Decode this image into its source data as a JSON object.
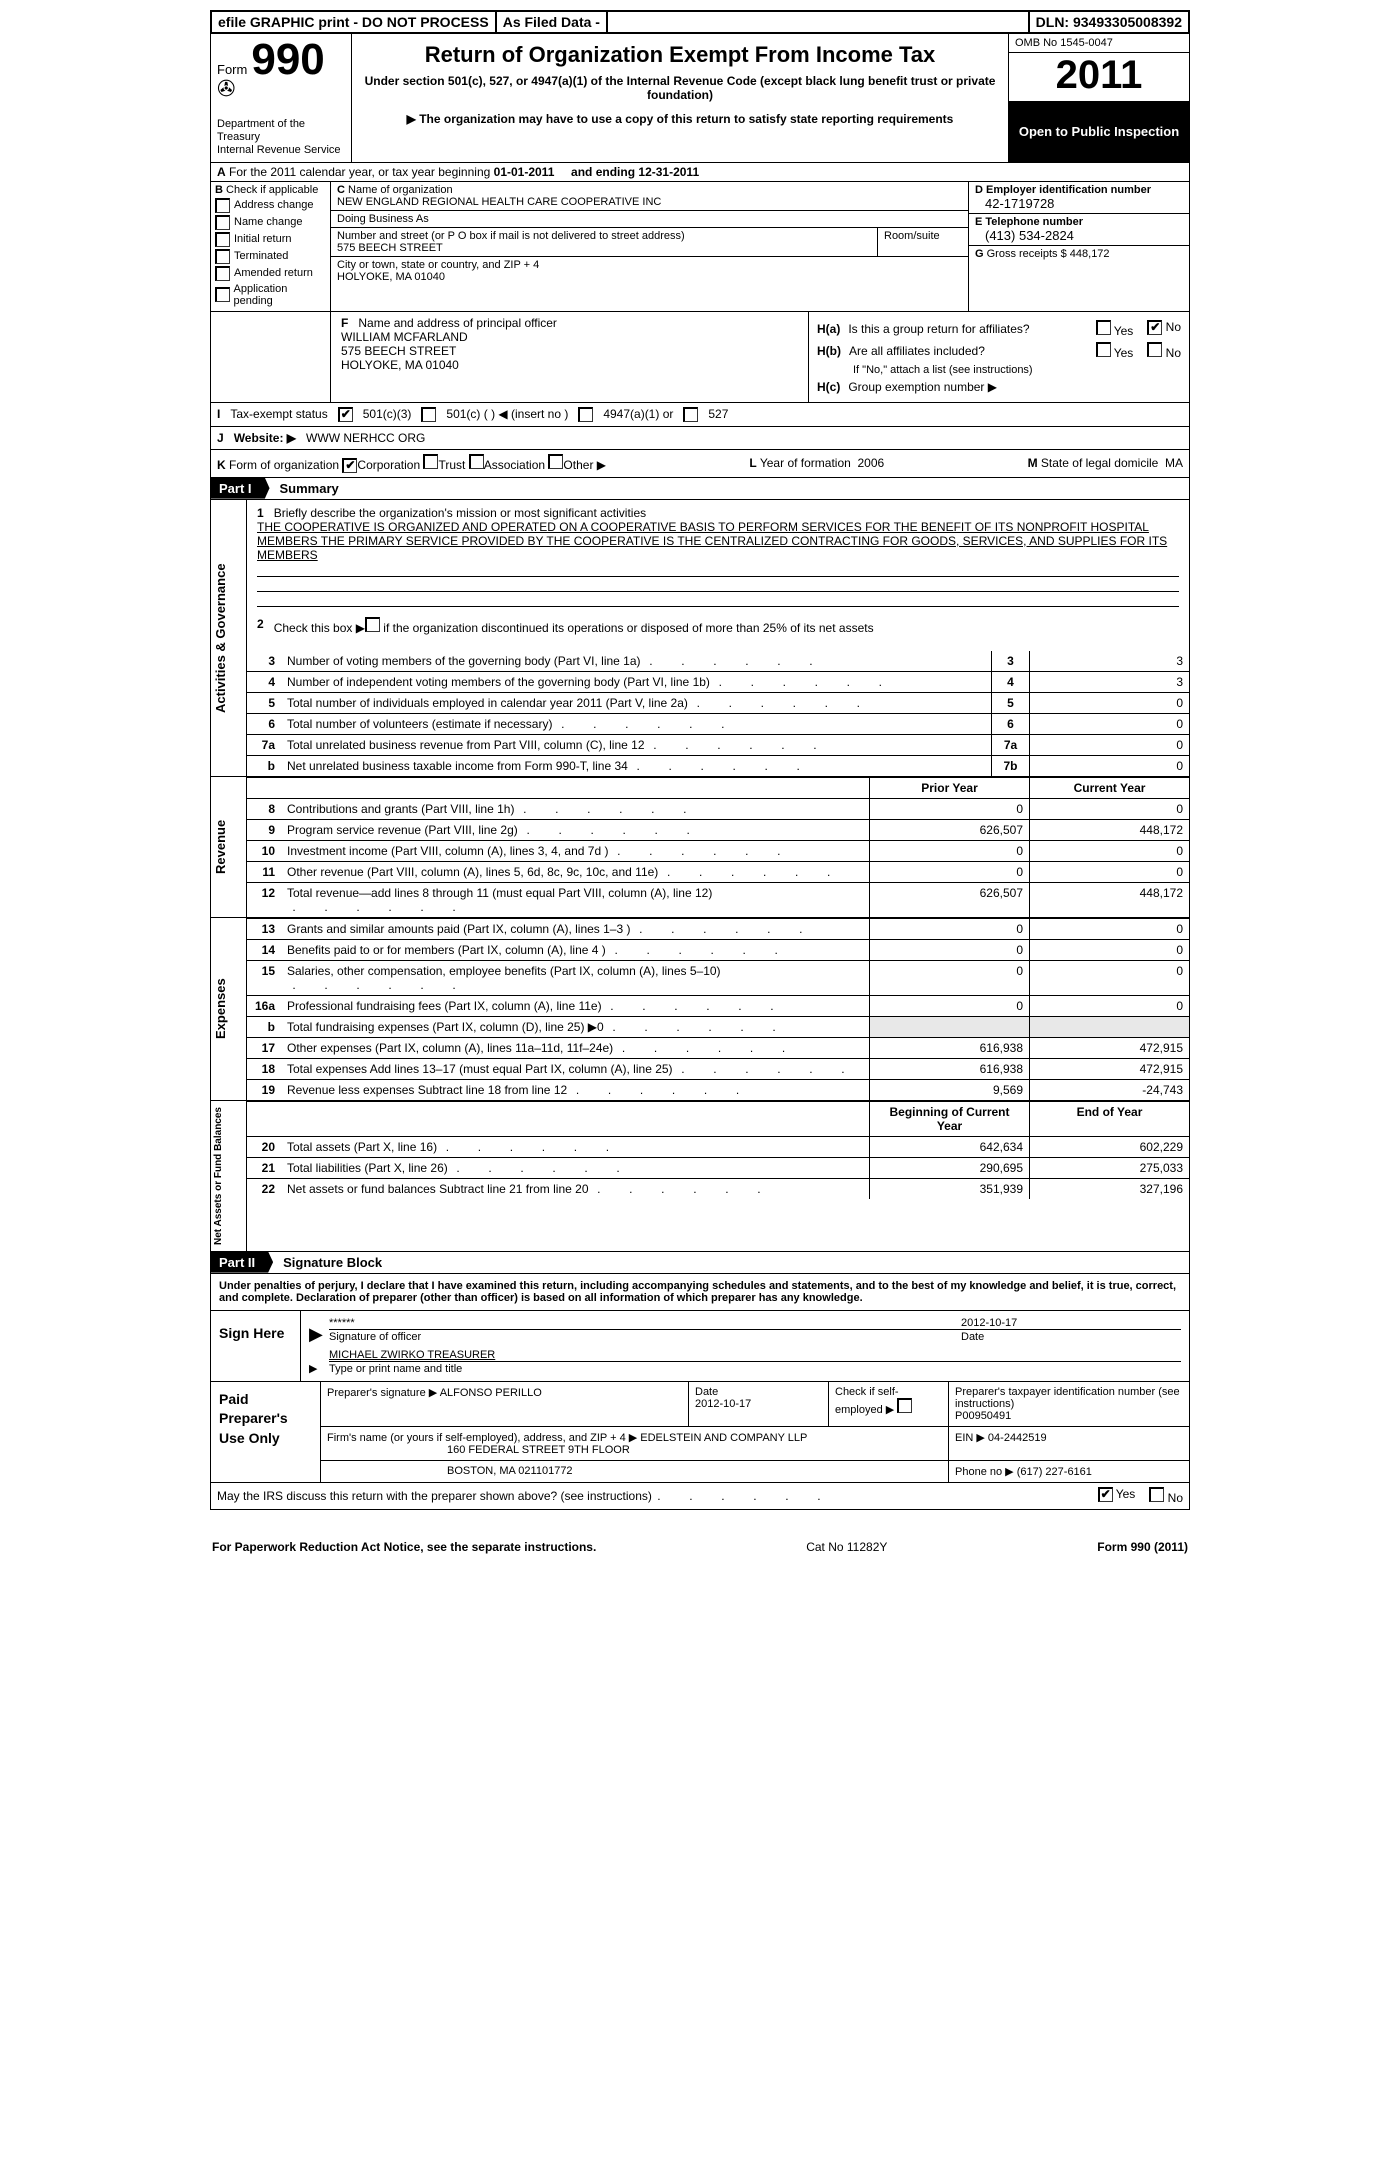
{
  "topbar": {
    "efile": "efile GRAPHIC print - DO NOT PROCESS",
    "asfiled": "As Filed Data -",
    "dln_label": "DLN:",
    "dln": "93493305008392"
  },
  "header": {
    "form_label": "Form",
    "form_num": "990",
    "dept1": "Department of the Treasury",
    "dept2": "Internal Revenue Service",
    "title": "Return of Organization Exempt From Income Tax",
    "subtitle": "Under section 501(c), 527, or 4947(a)(1) of the Internal Revenue Code (except black lung benefit trust or private foundation)",
    "note": "▶ The organization may have to use a copy of this return to satisfy state reporting requirements",
    "omb": "OMB No 1545-0047",
    "year": "2011",
    "open": "Open to Public Inspection"
  },
  "rowA": {
    "label": "A",
    "text1": "For the 2011 calendar year, or tax year beginning",
    "begin": "01-01-2011",
    "text2": "and ending",
    "end": "12-31-2011"
  },
  "colB": {
    "label": "B",
    "text": "Check if applicable",
    "items": [
      "Address change",
      "Name change",
      "Initial return",
      "Terminated",
      "Amended return",
      "Application pending"
    ]
  },
  "colC": {
    "c_label": "C",
    "name_label": "Name of organization",
    "name": "NEW ENGLAND REGIONAL HEALTH CARE COOPERATIVE INC",
    "dba_label": "Doing Business As",
    "street_label": "Number and street (or P O box if mail is not delivered to street address)",
    "room_label": "Room/suite",
    "street": "575 BEECH STREET",
    "city_label": "City or town, state or country, and ZIP + 4",
    "city": "HOLYOKE, MA  01040"
  },
  "colD": {
    "d_label": "D Employer identification number",
    "ein": "42-1719728",
    "e_label": "E Telephone number",
    "phone": "(413) 534-2824",
    "g_label": "G",
    "g_text": "Gross receipts $",
    "g_val": "448,172"
  },
  "rowF": {
    "label": "F",
    "text": "Name and address of principal officer",
    "l1": "WILLIAM MCFARLAND",
    "l2": "575 BEECH STREET",
    "l3": "HOLYOKE, MA  01040"
  },
  "rowH": {
    "ha_label": "H(a)",
    "ha_text": "Is this a group return for affiliates?",
    "hb_label": "H(b)",
    "hb_text": "Are all affiliates included?",
    "hb_note": "If \"No,\" attach a list (see instructions)",
    "hc_label": "H(c)",
    "hc_text": "Group exemption number ▶",
    "yes": "Yes",
    "no": "No"
  },
  "rowI": {
    "label": "I",
    "text": "Tax-exempt status",
    "opts": [
      "501(c)(3)",
      "501(c) (   ) ◀ (insert no )",
      "4947(a)(1) or",
      "527"
    ]
  },
  "rowJ": {
    "label": "J",
    "text": "Website: ▶",
    "val": "WWW NERHCC ORG"
  },
  "rowK": {
    "label": "K",
    "text": "Form of organization",
    "opts": [
      "Corporation",
      "Trust",
      "Association",
      "Other ▶"
    ],
    "l_label": "L",
    "l_text": "Year of formation",
    "l_val": "2006",
    "m_label": "M",
    "m_text": "State of legal domicile",
    "m_val": "MA"
  },
  "part1": {
    "tag": "Part I",
    "title": "Summary"
  },
  "gov": {
    "label": "Activities & Governance",
    "l1_n": "1",
    "l1_text": "Briefly describe the organization's mission or most significant activities",
    "mission": "THE COOPERATIVE IS ORGANIZED AND OPERATED ON A COOPERATIVE BASIS TO PERFORM SERVICES FOR THE BENEFIT OF ITS NONPROFIT HOSPITAL MEMBERS  THE PRIMARY SERVICE PROVIDED BY THE COOPERATIVE IS THE CENTRALIZED CONTRACTING FOR GOODS, SERVICES, AND SUPPLIES FOR ITS MEMBERS",
    "l2_n": "2",
    "l2_text": "Check this box ▶      if the organization discontinued its operations or disposed of more than 25% of its net assets",
    "lines": [
      {
        "n": "3",
        "t": "Number of voting members of the governing body (Part VI, line 1a)",
        "box": "3",
        "v": "3"
      },
      {
        "n": "4",
        "t": "Number of independent voting members of the governing body (Part VI, line 1b)",
        "box": "4",
        "v": "3"
      },
      {
        "n": "5",
        "t": "Total number of individuals employed in calendar year 2011 (Part V, line 2a)",
        "box": "5",
        "v": "0"
      },
      {
        "n": "6",
        "t": "Total number of volunteers (estimate if necessary)",
        "box": "6",
        "v": "0"
      },
      {
        "n": "7a",
        "t": "Total unrelated business revenue from Part VIII, column (C), line 12",
        "box": "7a",
        "v": "0"
      },
      {
        "n": "b",
        "t": "Net unrelated business taxable income from Form 990-T, line 34",
        "box": "7b",
        "v": "0"
      }
    ]
  },
  "rev": {
    "label": "Revenue",
    "head": {
      "c1": "Prior Year",
      "c2": "Current Year"
    },
    "lines": [
      {
        "n": "8",
        "t": "Contributions and grants (Part VIII, line 1h)",
        "c1": "0",
        "c2": "0"
      },
      {
        "n": "9",
        "t": "Program service revenue (Part VIII, line 2g)",
        "c1": "626,507",
        "c2": "448,172"
      },
      {
        "n": "10",
        "t": "Investment income (Part VIII, column (A), lines 3, 4, and 7d )",
        "c1": "0",
        "c2": "0"
      },
      {
        "n": "11",
        "t": "Other revenue (Part VIII, column (A), lines 5, 6d, 8c, 9c, 10c, and 11e)",
        "c1": "0",
        "c2": "0"
      },
      {
        "n": "12",
        "t": "Total revenue—add lines 8 through 11 (must equal Part VIII, column (A), line 12)",
        "c1": "626,507",
        "c2": "448,172"
      }
    ]
  },
  "exp": {
    "label": "Expenses",
    "lines": [
      {
        "n": "13",
        "t": "Grants and similar amounts paid (Part IX, column (A), lines 1–3 )",
        "c1": "0",
        "c2": "0"
      },
      {
        "n": "14",
        "t": "Benefits paid to or for members (Part IX, column (A), line 4 )",
        "c1": "0",
        "c2": "0"
      },
      {
        "n": "15",
        "t": "Salaries, other compensation, employee benefits (Part IX, column (A), lines 5–10)",
        "c1": "0",
        "c2": "0"
      },
      {
        "n": "16a",
        "t": "Professional fundraising fees (Part IX, column (A), line 11e)",
        "c1": "0",
        "c2": "0"
      },
      {
        "n": "b",
        "t": "Total fundraising expenses (Part IX, column (D), line 25) ▶0",
        "c1": "",
        "c2": "",
        "shade": true
      },
      {
        "n": "17",
        "t": "Other expenses (Part IX, column (A), lines 11a–11d, 11f–24e)",
        "c1": "616,938",
        "c2": "472,915"
      },
      {
        "n": "18",
        "t": "Total expenses  Add lines 13–17 (must equal Part IX, column (A), line 25)",
        "c1": "616,938",
        "c2": "472,915"
      },
      {
        "n": "19",
        "t": "Revenue less expenses  Subtract line 18 from line 12",
        "c1": "9,569",
        "c2": "-24,743"
      }
    ]
  },
  "net": {
    "label": "Net Assets or Fund Balances",
    "head": {
      "c1": "Beginning of Current Year",
      "c2": "End of Year"
    },
    "lines": [
      {
        "n": "20",
        "t": "Total assets (Part X, line 16)",
        "c1": "642,634",
        "c2": "602,229"
      },
      {
        "n": "21",
        "t": "Total liabilities (Part X, line 26)",
        "c1": "290,695",
        "c2": "275,033"
      },
      {
        "n": "22",
        "t": "Net assets or fund balances  Subtract line 21 from line 20",
        "c1": "351,939",
        "c2": "327,196"
      }
    ]
  },
  "part2": {
    "tag": "Part II",
    "title": "Signature Block"
  },
  "sig": {
    "intro": "Under penalties of perjury, I declare that I have examined this return, including accompanying schedules and statements, and to the best of my knowledge and belief, it is true, correct, and complete. Declaration of preparer (other than officer) is based on all information of which preparer has any knowledge.",
    "sign_here": "Sign Here",
    "stars": "******",
    "sig_label": "Signature of officer",
    "date_label": "Date",
    "date": "2012-10-17",
    "name": "MICHAEL ZWIRKO TREASURER",
    "name_label": "Type or print name and title"
  },
  "prep": {
    "left": "Paid Preparer's Use Only",
    "p_sig_label": "Preparer's signature",
    "p_name": "ALFONSO PERILLO",
    "p_date_label": "Date",
    "p_date": "2012-10-17",
    "self_label": "Check if self-employed ▶",
    "ptin_label": "Preparer's taxpayer identification number (see instructions)",
    "ptin": "P00950491",
    "firm_label": "Firm's name (or yours if self-employed), address, and ZIP + 4",
    "firm": "EDELSTEIN AND COMPANY LLP",
    "addr1": "160 FEDERAL STREET 9TH FLOOR",
    "addr2": "BOSTON, MA  021101772",
    "ein_label": "EIN  ▶",
    "ein": "04-2442519",
    "phone_label": "Phone no   ▶",
    "phone": "(617) 227-6161"
  },
  "discuss": {
    "text": "May the IRS discuss this return with the preparer shown above? (see instructions)",
    "yes": "Yes",
    "no": "No"
  },
  "footer": {
    "left": "For Paperwork Reduction Act Notice, see the separate instructions.",
    "mid": "Cat No 11282Y",
    "right": "Form 990 (2011)"
  }
}
